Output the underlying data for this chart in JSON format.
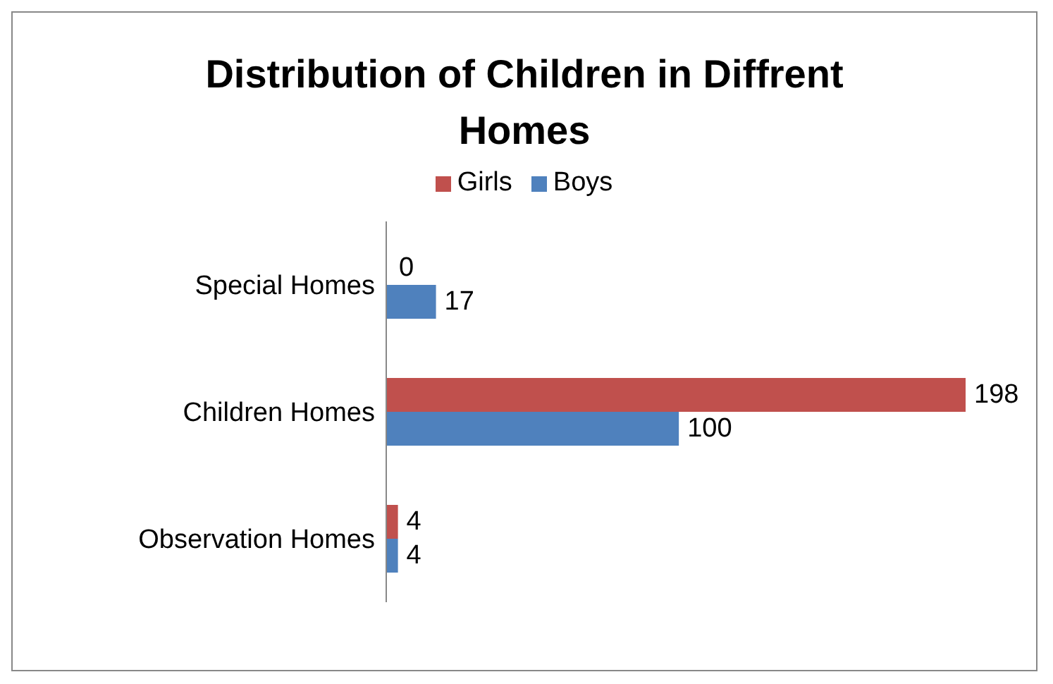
{
  "chart_data": {
    "type": "bar",
    "orientation": "horizontal",
    "title": "Distribution of Children in Diffrent Homes",
    "categories": [
      "Special Homes",
      "Children Homes",
      "Observation Homes"
    ],
    "series": [
      {
        "name": "Girls",
        "color": "#c0504d",
        "values": [
          0,
          198,
          4
        ]
      },
      {
        "name": "Boys",
        "color": "#4f81bd",
        "values": [
          17,
          100,
          4
        ]
      }
    ],
    "data_labels": true,
    "legend": "top",
    "grid": false
  }
}
